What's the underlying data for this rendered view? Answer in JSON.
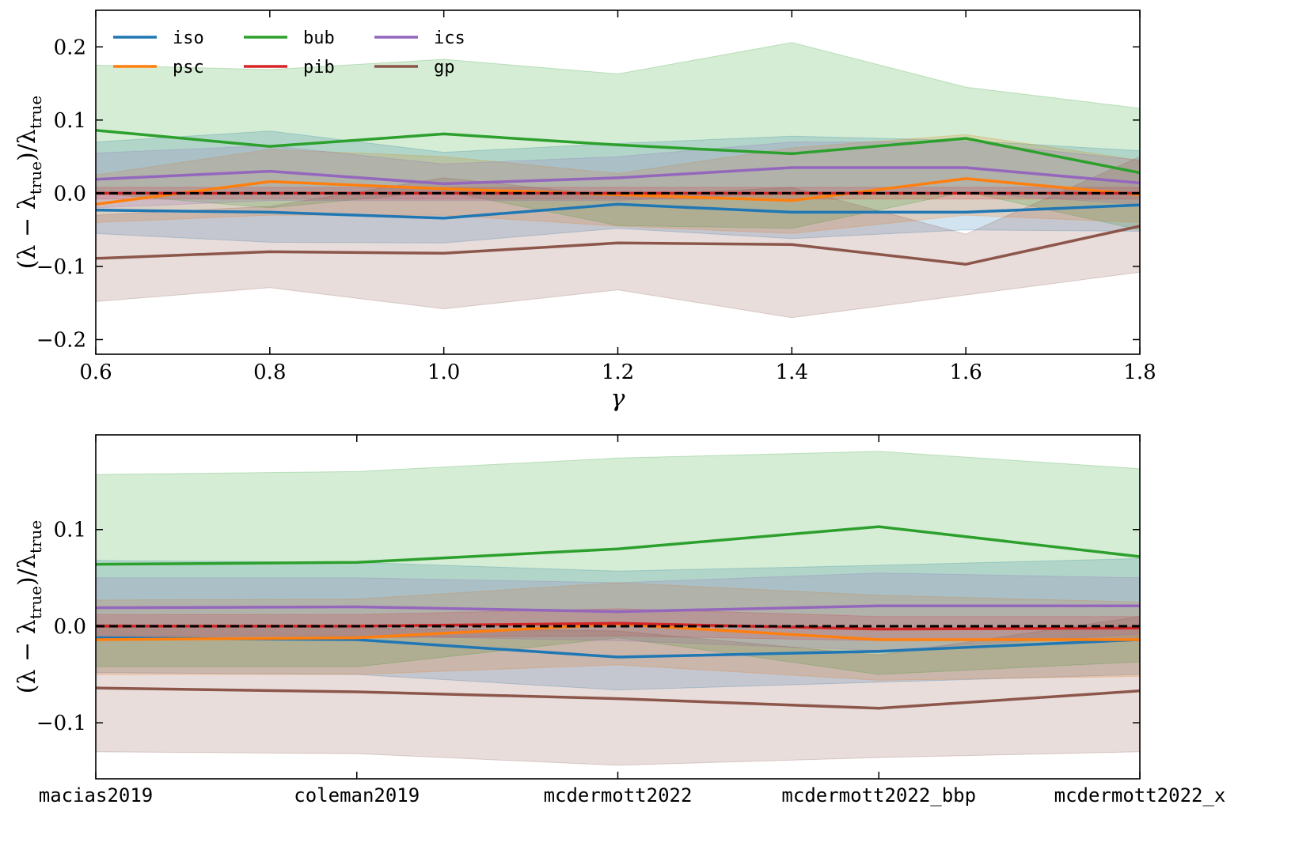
{
  "colors": {
    "iso": "#1f77b4",
    "psc": "#ff7f0e",
    "bub": "#2ca02c",
    "pib": "#d62728",
    "ics": "#9467bd",
    "gp": "#8c564b",
    "reference": "#000000"
  },
  "chart_data": [
    {
      "type": "line",
      "title": "",
      "xlabel": "γ",
      "ylabel": "(λ − λtrue)/λtrue",
      "ylabel_main": "(λ − λ",
      "ylabel_sub": "true",
      "ylabel_close": ")/λ",
      "ylabel_sub2": "true",
      "xlim": [
        0.6,
        1.8
      ],
      "ylim": [
        -0.22,
        0.25
      ],
      "xticks": [
        0.6,
        0.8,
        1.0,
        1.2,
        1.4,
        1.6,
        1.8
      ],
      "xtick_labels": [
        "0.6",
        "0.8",
        "1.0",
        "1.2",
        "1.4",
        "1.6",
        "1.8"
      ],
      "yticks": [
        -0.2,
        -0.1,
        0.0,
        0.1,
        0.2
      ],
      "ytick_labels": [
        "−0.2",
        "−0.1",
        "0.0",
        "0.1",
        "0.2"
      ],
      "legend_position": "top-left",
      "x": [
        0.6,
        0.8,
        1.0,
        1.2,
        1.4,
        1.6,
        1.8
      ],
      "reference_line": 0.0,
      "series": [
        {
          "name": "iso",
          "values": [
            -0.023,
            -0.026,
            -0.034,
            -0.015,
            -0.026,
            -0.026,
            -0.016
          ],
          "lower": [
            -0.055,
            -0.067,
            -0.068,
            -0.048,
            -0.062,
            -0.05,
            -0.052
          ],
          "upper": [
            0.07,
            0.085,
            0.056,
            0.068,
            0.078,
            0.072,
            0.058
          ]
        },
        {
          "name": "psc",
          "values": [
            -0.015,
            0.016,
            0.006,
            -0.002,
            -0.01,
            0.02,
            -0.002
          ],
          "lower": [
            -0.04,
            -0.03,
            -0.03,
            -0.045,
            -0.055,
            -0.03,
            -0.04
          ],
          "upper": [
            0.025,
            0.06,
            0.05,
            0.027,
            0.062,
            0.08,
            0.045
          ]
        },
        {
          "name": "bub",
          "values": [
            0.086,
            0.064,
            0.081,
            0.066,
            0.054,
            0.075,
            0.028
          ],
          "lower": [
            0.0,
            -0.02,
            0.003,
            -0.044,
            -0.048,
            0.002,
            -0.05
          ],
          "upper": [
            0.175,
            0.169,
            0.183,
            0.163,
            0.206,
            0.145,
            0.116
          ]
        },
        {
          "name": "pib",
          "values": [
            0.0,
            0.0,
            0.0,
            0.0,
            0.0,
            0.0,
            0.0
          ],
          "lower": [
            -0.008,
            -0.008,
            -0.008,
            -0.008,
            -0.008,
            -0.008,
            -0.008
          ],
          "upper": [
            0.008,
            0.008,
            0.008,
            0.008,
            0.008,
            0.008,
            0.008
          ]
        },
        {
          "name": "ics",
          "values": [
            0.019,
            0.03,
            0.013,
            0.021,
            0.035,
            0.035,
            0.014
          ],
          "lower": [
            -0.02,
            -0.01,
            -0.01,
            -0.01,
            0.0,
            0.0,
            -0.015
          ],
          "upper": [
            0.055,
            0.065,
            0.04,
            0.05,
            0.07,
            0.07,
            0.045
          ]
        },
        {
          "name": "gp",
          "values": [
            -0.089,
            -0.08,
            -0.082,
            -0.068,
            -0.07,
            -0.097,
            -0.045
          ],
          "lower": [
            -0.148,
            -0.129,
            -0.158,
            -0.132,
            -0.17,
            -0.139,
            -0.108
          ],
          "upper": [
            -0.03,
            -0.018,
            0.021,
            -0.004,
            0.008,
            -0.056,
            0.05
          ]
        }
      ]
    },
    {
      "type": "line",
      "title": "",
      "xlabel": "",
      "ylabel": "(λ − λtrue)/λtrue",
      "ylabel_main": "(λ − λ",
      "ylabel_sub": "true",
      "ylabel_close": ")/λ",
      "ylabel_sub2": "true",
      "ylim": [
        -0.158,
        0.198
      ],
      "categories": [
        "macias2019",
        "coleman2019",
        "mcdermott2022",
        "mcdermott2022_bbp",
        "mcdermott2022_x"
      ],
      "yticks": [
        -0.1,
        0.0,
        0.1
      ],
      "ytick_labels": [
        "−0.1",
        "0.0",
        "0.1"
      ],
      "reference_line": 0.0,
      "series": [
        {
          "name": "iso",
          "values": [
            -0.012,
            -0.014,
            -0.032,
            -0.026,
            -0.014
          ],
          "lower": [
            -0.048,
            -0.05,
            -0.066,
            -0.058,
            -0.05
          ],
          "upper": [
            0.068,
            0.066,
            0.057,
            0.063,
            0.07
          ]
        },
        {
          "name": "psc",
          "values": [
            -0.014,
            -0.012,
            0.002,
            -0.014,
            -0.014
          ],
          "lower": [
            -0.05,
            -0.05,
            -0.04,
            -0.056,
            -0.052
          ],
          "upper": [
            0.027,
            0.028,
            0.045,
            0.032,
            0.025
          ]
        },
        {
          "name": "bub",
          "values": [
            0.064,
            0.066,
            0.08,
            0.103,
            0.072
          ],
          "lower": [
            -0.042,
            -0.042,
            -0.012,
            -0.05,
            -0.037
          ],
          "upper": [
            0.157,
            0.16,
            0.174,
            0.181,
            0.163
          ]
        },
        {
          "name": "pib",
          "values": [
            0.0,
            0.0,
            0.003,
            -0.003,
            -0.002
          ],
          "lower": [
            -0.012,
            -0.012,
            -0.01,
            -0.015,
            -0.014
          ],
          "upper": [
            0.012,
            0.012,
            0.018,
            0.01,
            0.01
          ]
        },
        {
          "name": "ics",
          "values": [
            0.019,
            0.02,
            0.015,
            0.021,
            0.021
          ],
          "lower": [
            -0.01,
            -0.01,
            -0.015,
            -0.025,
            -0.008
          ],
          "upper": [
            0.05,
            0.05,
            0.045,
            0.055,
            0.05
          ]
        },
        {
          "name": "gp",
          "values": [
            -0.064,
            -0.068,
            -0.075,
            -0.085,
            -0.067
          ],
          "lower": [
            -0.13,
            -0.132,
            -0.144,
            -0.136,
            -0.13
          ],
          "upper": [
            0.002,
            -0.002,
            -0.005,
            -0.03,
            0.01
          ]
        }
      ]
    }
  ]
}
